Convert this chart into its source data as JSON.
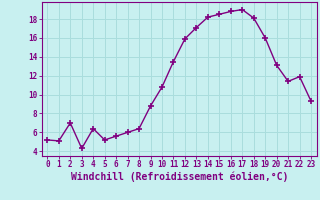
{
  "x": [
    0,
    1,
    2,
    3,
    4,
    5,
    6,
    7,
    8,
    9,
    10,
    11,
    12,
    13,
    14,
    15,
    16,
    17,
    18,
    19,
    20,
    21,
    22,
    23
  ],
  "y": [
    5.2,
    5.1,
    7.0,
    4.3,
    6.4,
    5.2,
    5.6,
    6.0,
    6.4,
    8.8,
    10.8,
    13.5,
    15.9,
    17.1,
    18.2,
    18.5,
    18.8,
    19.0,
    18.1,
    16.0,
    13.1,
    11.4,
    11.9,
    9.3
  ],
  "line_color": "#800080",
  "marker": "+",
  "marker_size": 4,
  "marker_lw": 1.2,
  "bg_color": "#c8f0f0",
  "grid_color": "#aadddd",
  "xlabel": "Windchill (Refroidissement éolien,°C)",
  "xlabel_fontsize": 7,
  "tick_color": "#800080",
  "label_color": "#800080",
  "ylim": [
    3.5,
    19.8
  ],
  "xlim": [
    -0.5,
    23.5
  ],
  "yticks": [
    4,
    6,
    8,
    10,
    12,
    14,
    16,
    18
  ],
  "xticks": [
    0,
    1,
    2,
    3,
    4,
    5,
    6,
    7,
    8,
    9,
    10,
    11,
    12,
    13,
    14,
    15,
    16,
    17,
    18,
    19,
    20,
    21,
    22,
    23
  ]
}
